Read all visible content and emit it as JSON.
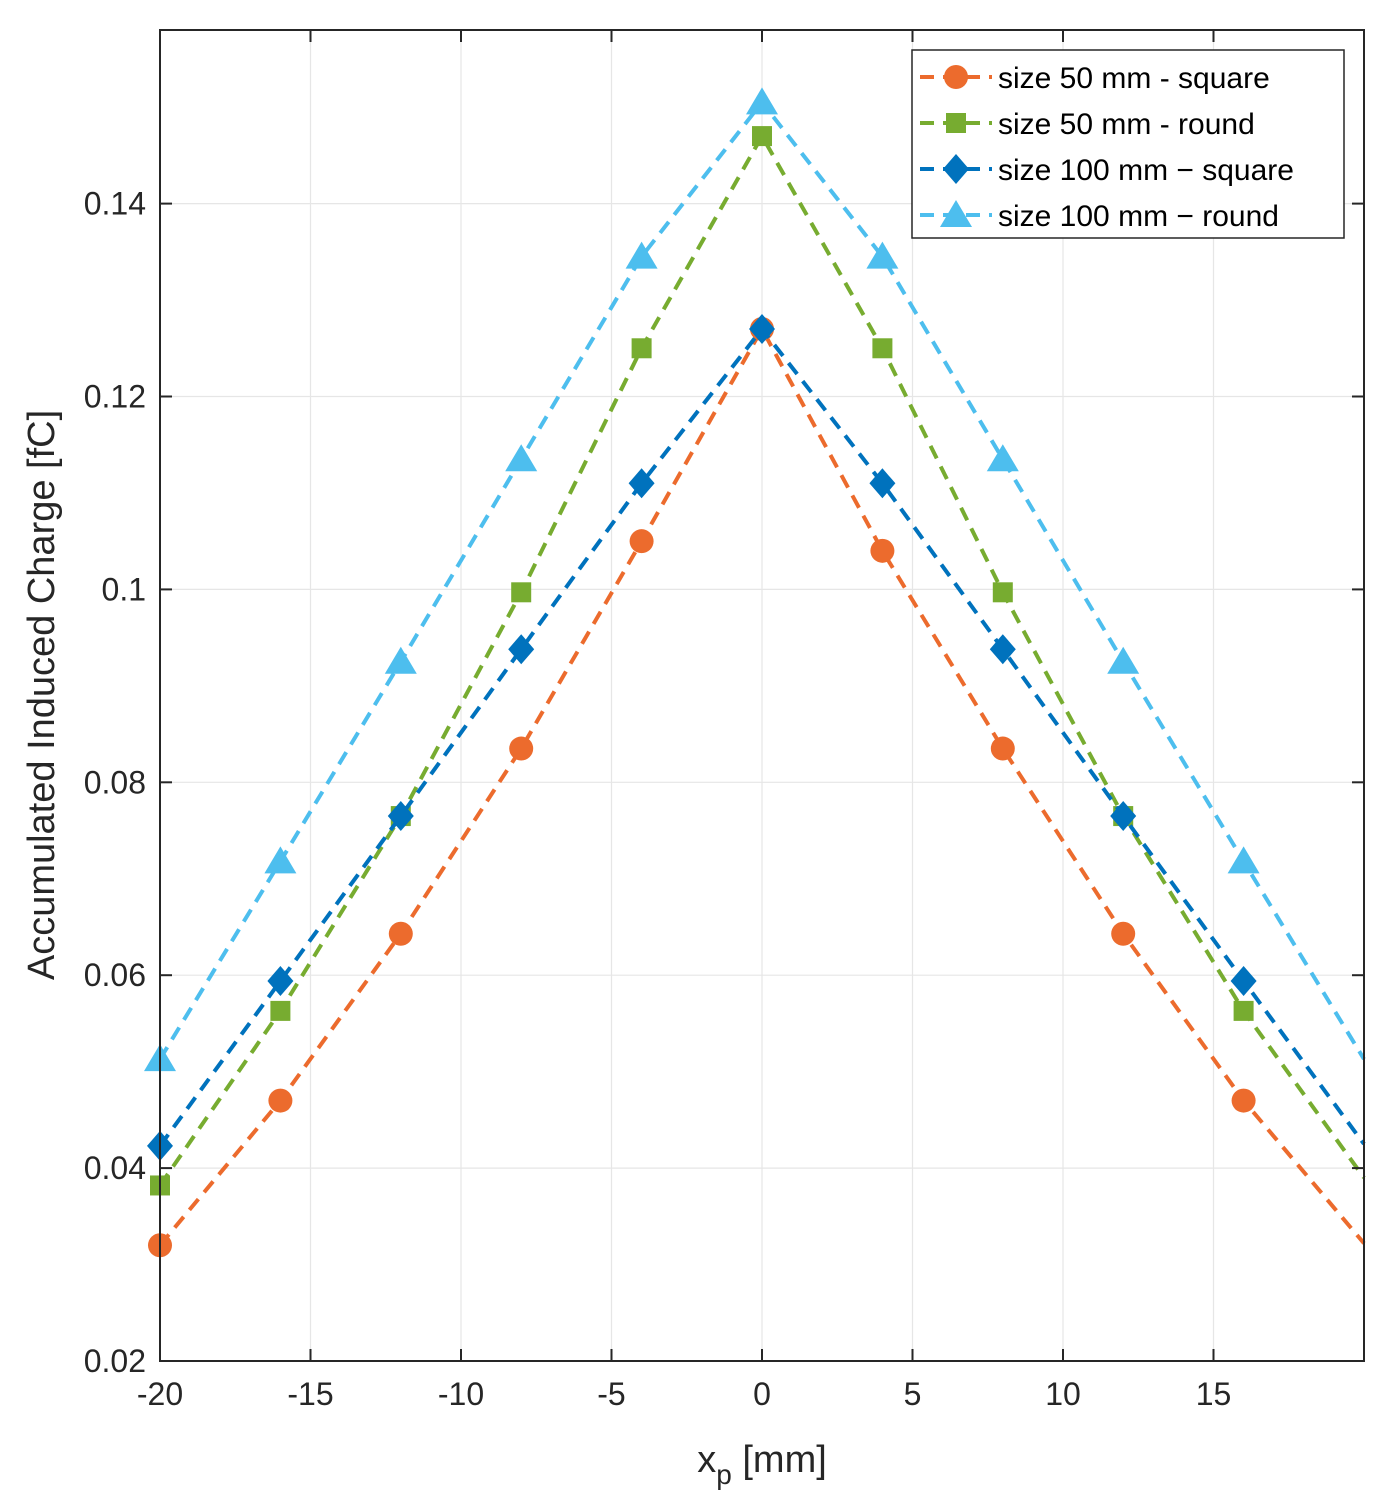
{
  "chart_data": {
    "type": "line",
    "title": "",
    "xlabel_main": "x",
    "xlabel_sub": "p",
    "xlabel_unit": " [mm]",
    "ylabel": "Accumulated Induced Charge [fC]",
    "xlim": [
      -20,
      20
    ],
    "ylim": [
      0.02,
      0.158
    ],
    "xticks": [
      -20,
      -15,
      -10,
      -5,
      0,
      5,
      10,
      15
    ],
    "xtick_labels": [
      "-20",
      "-15",
      "-10",
      "-5",
      "0",
      "5",
      "10",
      "15"
    ],
    "yticks": [
      0.02,
      0.04,
      0.06,
      0.08,
      0.1,
      0.12,
      0.14
    ],
    "ytick_labels": [
      "0.02",
      "0.04",
      "0.06",
      "0.08",
      "0.1",
      "0.12",
      "0.14"
    ],
    "grid": true,
    "legend_position": "top-right",
    "x": [
      -20,
      -16,
      -12,
      -8,
      -4,
      0,
      4,
      8,
      12,
      16
    ],
    "series": [
      {
        "name": "size 50 mm - square",
        "color": "#EC6B2D",
        "marker": "circle",
        "values": [
          0.032,
          0.047,
          0.0643,
          0.0835,
          0.105,
          0.127,
          0.104,
          0.0835,
          0.0643,
          0.047
        ],
        "line_end": 0.0322
      },
      {
        "name": "size 50 mm - round",
        "color": "#77AC30",
        "marker": "square",
        "values": [
          0.0382,
          0.0563,
          0.0765,
          0.0997,
          0.125,
          0.147,
          0.125,
          0.0997,
          0.0765,
          0.0563
        ],
        "line_end": 0.039
      },
      {
        "name": "size 100 mm − square",
        "color": "#0072BD",
        "marker": "diamond",
        "values": [
          0.0423,
          0.0594,
          0.0765,
          0.0938,
          0.111,
          0.127,
          0.111,
          0.0938,
          0.0765,
          0.0594
        ],
        "line_end": 0.0425
      },
      {
        "name": "size 100 mm − round",
        "color": "#4DBEEE",
        "marker": "triangle",
        "values": [
          0.0513,
          0.0718,
          0.0925,
          0.1135,
          0.1345,
          0.1505,
          0.1345,
          0.1135,
          0.0925,
          0.0718
        ],
        "line_end": 0.0513
      }
    ]
  }
}
